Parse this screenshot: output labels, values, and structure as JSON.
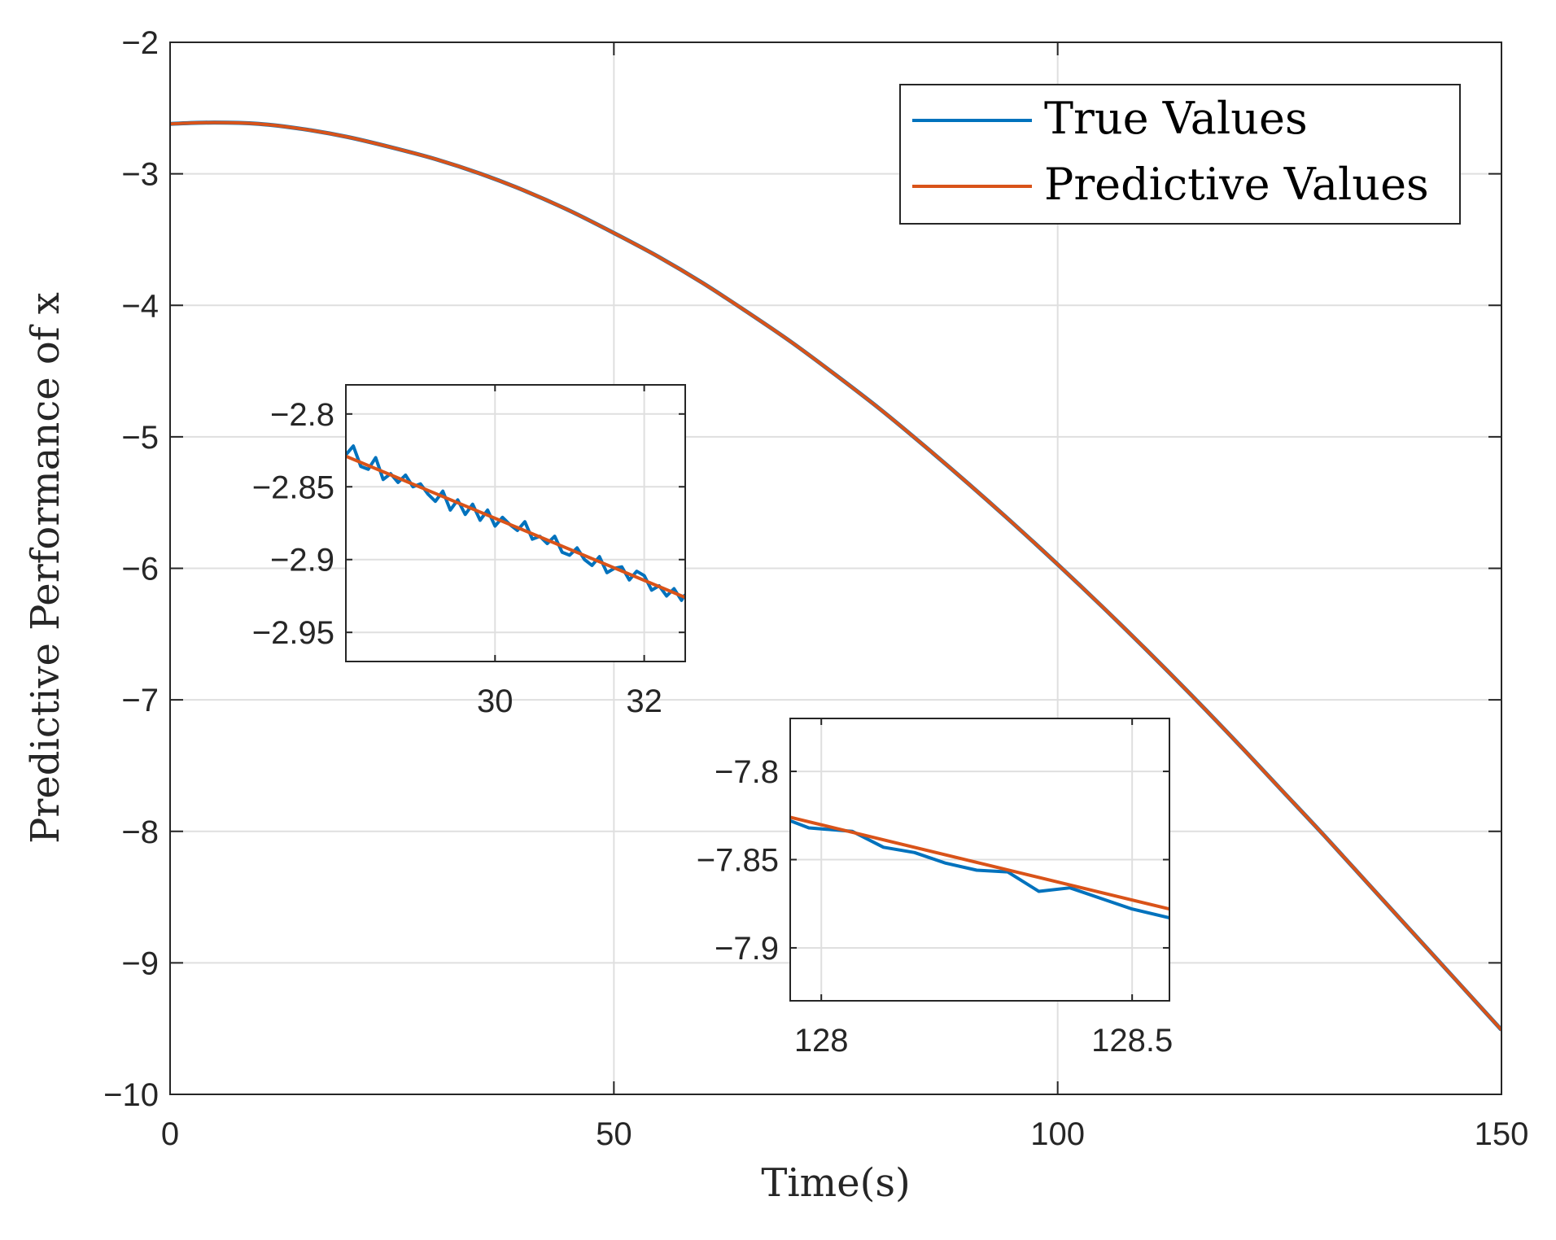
{
  "chart_data": [
    {
      "id": "main",
      "type": "line",
      "title": "",
      "xlabel": "Time(s)",
      "ylabel": "Predictive Performance of x",
      "xlim": [
        0,
        150
      ],
      "ylim": [
        -10,
        -2
      ],
      "xticks": [
        0,
        50,
        100,
        150
      ],
      "xtick_labels": [
        "0",
        "50",
        "100",
        "150"
      ],
      "yticks": [
        -10,
        -9,
        -8,
        -7,
        -6,
        -5,
        -4,
        -3,
        -2
      ],
      "ytick_labels": [
        "−10",
        "−9",
        "−8",
        "−7",
        "−6",
        "−5",
        "−4",
        "−3",
        "−2"
      ],
      "grid": true,
      "legend_position": "top-right",
      "series": [
        {
          "name": "True Values",
          "color": "#0072bd",
          "x": [
            0,
            5,
            10,
            15,
            20,
            25,
            30,
            35,
            40,
            45,
            50,
            55,
            60,
            65,
            70,
            75,
            80,
            85,
            90,
            95,
            100,
            105,
            110,
            115,
            120,
            125,
            130,
            135,
            140,
            145,
            150
          ],
          "y": [
            -2.62,
            -2.61,
            -2.62,
            -2.66,
            -2.72,
            -2.8,
            -2.89,
            -3.0,
            -3.13,
            -3.28,
            -3.45,
            -3.63,
            -3.83,
            -4.05,
            -4.28,
            -4.53,
            -4.79,
            -5.07,
            -5.36,
            -5.66,
            -5.97,
            -6.29,
            -6.62,
            -6.96,
            -7.31,
            -7.67,
            -8.03,
            -8.4,
            -8.77,
            -9.14,
            -9.51
          ]
        },
        {
          "name": "Predictive Values",
          "color": "#d95319",
          "x": [
            0,
            5,
            10,
            15,
            20,
            25,
            30,
            35,
            40,
            45,
            50,
            55,
            60,
            65,
            70,
            75,
            80,
            85,
            90,
            95,
            100,
            105,
            110,
            115,
            120,
            125,
            130,
            135,
            140,
            145,
            150
          ],
          "y": [
            -2.62,
            -2.61,
            -2.62,
            -2.66,
            -2.72,
            -2.8,
            -2.89,
            -3.0,
            -3.13,
            -3.28,
            -3.45,
            -3.63,
            -3.83,
            -4.05,
            -4.28,
            -4.53,
            -4.79,
            -5.07,
            -5.36,
            -5.66,
            -5.97,
            -6.29,
            -6.62,
            -6.96,
            -7.31,
            -7.67,
            -8.03,
            -8.4,
            -8.77,
            -9.14,
            -9.51
          ]
        }
      ]
    },
    {
      "id": "inset1",
      "type": "line",
      "xlim": [
        28,
        32.55
      ],
      "ylim": [
        -2.97,
        -2.78
      ],
      "xticks": [
        30,
        32
      ],
      "xtick_labels": [
        "30",
        "32"
      ],
      "yticks": [
        -2.95,
        -2.9,
        -2.85,
        -2.8
      ],
      "ytick_labels": [
        "−2.95",
        "−2.9",
        "−2.85",
        "−2.8"
      ],
      "grid": true,
      "series": [
        {
          "name": "True Values",
          "color": "#0072bd",
          "x": [
            28.0,
            28.1,
            28.2,
            28.3,
            28.4,
            28.5,
            28.6,
            28.7,
            28.8,
            28.9,
            29.0,
            29.1,
            29.2,
            29.3,
            29.4,
            29.5,
            29.6,
            29.7,
            29.8,
            29.9,
            30.0,
            30.1,
            30.2,
            30.3,
            30.4,
            30.5,
            30.6,
            30.7,
            30.8,
            30.9,
            31.0,
            31.1,
            31.2,
            31.3,
            31.4,
            31.5,
            31.6,
            31.7,
            31.8,
            31.9,
            32.0,
            32.1,
            32.2,
            32.3,
            32.4,
            32.5,
            32.55
          ],
          "y": [
            -2.828,
            -2.822,
            -2.836,
            -2.838,
            -2.83,
            -2.845,
            -2.841,
            -2.847,
            -2.842,
            -2.85,
            -2.848,
            -2.855,
            -2.86,
            -2.853,
            -2.866,
            -2.859,
            -2.869,
            -2.862,
            -2.873,
            -2.866,
            -2.877,
            -2.871,
            -2.876,
            -2.88,
            -2.874,
            -2.886,
            -2.884,
            -2.889,
            -2.884,
            -2.895,
            -2.897,
            -2.892,
            -2.9,
            -2.904,
            -2.898,
            -2.909,
            -2.906,
            -2.905,
            -2.914,
            -2.908,
            -2.911,
            -2.921,
            -2.918,
            -2.925,
            -2.92,
            -2.928,
            -2.924
          ]
        },
        {
          "name": "Predictive Values",
          "color": "#d95319",
          "x": [
            28.0,
            32.55
          ],
          "y": [
            -2.829,
            -2.926
          ]
        }
      ]
    },
    {
      "id": "inset2",
      "type": "line",
      "xlim": [
        127.95,
        128.56
      ],
      "ylim": [
        -7.93,
        -7.77
      ],
      "xticks": [
        128,
        128.5
      ],
      "xtick_labels": [
        "128",
        "128.5"
      ],
      "yticks": [
        -7.9,
        -7.85,
        -7.8
      ],
      "ytick_labels": [
        "−7.9",
        "−7.85",
        "−7.8"
      ],
      "grid": true,
      "series": [
        {
          "name": "True Values",
          "color": "#0072bd",
          "x": [
            127.95,
            127.98,
            128.05,
            128.1,
            128.15,
            128.2,
            128.25,
            128.3,
            128.35,
            128.4,
            128.45,
            128.5,
            128.56
          ],
          "y": [
            -7.828,
            -7.832,
            -7.834,
            -7.843,
            -7.846,
            -7.852,
            -7.856,
            -7.857,
            -7.868,
            -7.866,
            -7.872,
            -7.878,
            -7.883
          ],
          "note": "x values approximate"
        },
        {
          "name": "Predictive Values",
          "color": "#d95319",
          "x": [
            127.95,
            128.56
          ],
          "y": [
            -7.826,
            -7.878
          ]
        }
      ]
    }
  ]
}
